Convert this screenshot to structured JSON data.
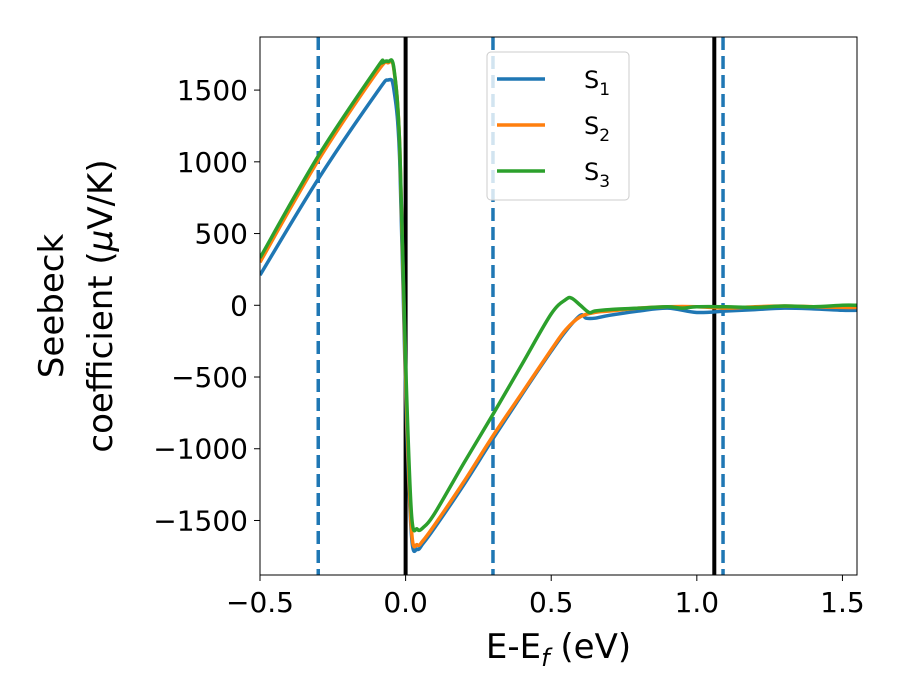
{
  "chart_data": {
    "type": "line",
    "xlabel": "E-E_f (eV)",
    "ylabel_line1": "Seebeck",
    "ylabel_line2": "coefficient  (μV/K)",
    "xlim": [
      -0.5,
      1.55
    ],
    "ylim": [
      -1880,
      1870
    ],
    "xticks": [
      -0.5,
      0.0,
      0.5,
      1.0,
      1.5
    ],
    "xtick_labels": [
      "−0.5",
      "0.0",
      "0.5",
      "1.0",
      "1.5"
    ],
    "yticks": [
      -1500,
      -1000,
      -500,
      0,
      500,
      1000,
      1500
    ],
    "ytick_labels": [
      "−1500",
      "−1000",
      "−500",
      "0",
      "500",
      "1000",
      "1500"
    ],
    "grid": false,
    "legend_position": "top-center",
    "vlines": [
      {
        "x": -0.3,
        "style": "dashed",
        "color": "#1f77b4"
      },
      {
        "x": 0.3,
        "style": "dashed",
        "color": "#1f77b4"
      },
      {
        "x": 1.09,
        "style": "dashed",
        "color": "#1f77b4"
      },
      {
        "x": 0.0,
        "style": "solid",
        "color": "#000000"
      },
      {
        "x": 1.06,
        "style": "solid",
        "color": "#000000"
      }
    ],
    "series": [
      {
        "name": "S1",
        "label_base": "S",
        "label_sub": "1",
        "color": "#1f77b4",
        "x": [
          -0.5,
          -0.3,
          -0.1,
          -0.06,
          -0.04,
          -0.02,
          0.0,
          0.02,
          0.04,
          0.06,
          0.1,
          0.2,
          0.3,
          0.4,
          0.5,
          0.55,
          0.6,
          0.62,
          0.65,
          0.7,
          0.8,
          0.9,
          1.0,
          1.1,
          1.2,
          1.3,
          1.4,
          1.5,
          1.55
        ],
        "y": [
          210,
          880,
          1480,
          1570,
          1500,
          1000,
          -600,
          -1600,
          -1700,
          -1660,
          -1550,
          -1250,
          -930,
          -620,
          -320,
          -180,
          -70,
          -90,
          -90,
          -70,
          -40,
          -20,
          -50,
          -40,
          -30,
          -20,
          -25,
          -35,
          -35
        ]
      },
      {
        "name": "S2",
        "label_base": "S",
        "label_sub": "2",
        "color": "#ff7f0e",
        "x": [
          -0.5,
          -0.3,
          -0.1,
          -0.06,
          -0.04,
          -0.02,
          0.0,
          0.02,
          0.04,
          0.06,
          0.1,
          0.2,
          0.3,
          0.4,
          0.5,
          0.55,
          0.6,
          0.65,
          0.7,
          0.8,
          0.9,
          1.0,
          1.1,
          1.2,
          1.3,
          1.4,
          1.5,
          1.55
        ],
        "y": [
          300,
          1010,
          1620,
          1690,
          1640,
          1100,
          -500,
          -1560,
          -1670,
          -1640,
          -1530,
          -1230,
          -910,
          -610,
          -310,
          -170,
          -80,
          -50,
          -40,
          -20,
          -10,
          -10,
          -20,
          -10,
          -5,
          -10,
          -15,
          -15
        ]
      },
      {
        "name": "S3",
        "label_base": "S",
        "label_sub": "3",
        "color": "#2ca02c",
        "x": [
          -0.5,
          -0.3,
          -0.1,
          -0.08,
          -0.06,
          -0.04,
          -0.02,
          0.0,
          0.02,
          0.04,
          0.06,
          0.1,
          0.2,
          0.3,
          0.4,
          0.5,
          0.55,
          0.57,
          0.6,
          0.63,
          0.65,
          0.7,
          0.8,
          0.9,
          0.95,
          1.0,
          1.1,
          1.2,
          1.3,
          1.4,
          1.5,
          1.55
        ],
        "y": [
          330,
          1040,
          1650,
          1690,
          1700,
          1650,
          1100,
          -400,
          -1450,
          -1560,
          -1550,
          -1450,
          -1100,
          -760,
          -410,
          -60,
          40,
          50,
          0,
          -50,
          -40,
          -30,
          -20,
          -10,
          -20,
          -10,
          -10,
          -15,
          -5,
          -10,
          0,
          0
        ]
      }
    ]
  }
}
